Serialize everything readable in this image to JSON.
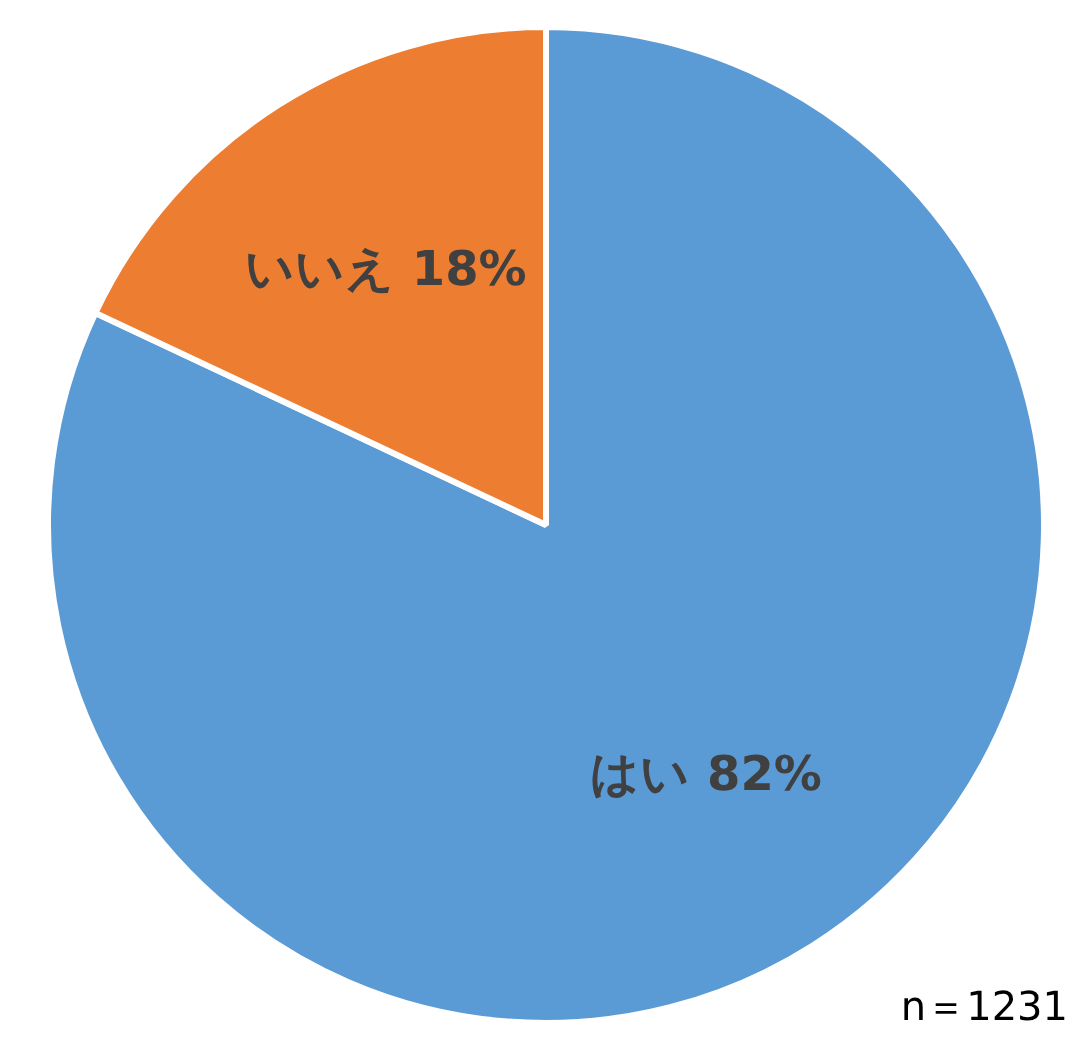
{
  "chart_data": {
    "type": "pie",
    "categories": [
      "はい",
      "いいえ"
    ],
    "values": [
      82,
      18
    ],
    "colors": [
      "#5b9bd5",
      "#ed7d31"
    ],
    "value_labels": [
      "82%",
      "18%"
    ],
    "legend": false,
    "annotations": [
      "n＝1231"
    ]
  }
}
